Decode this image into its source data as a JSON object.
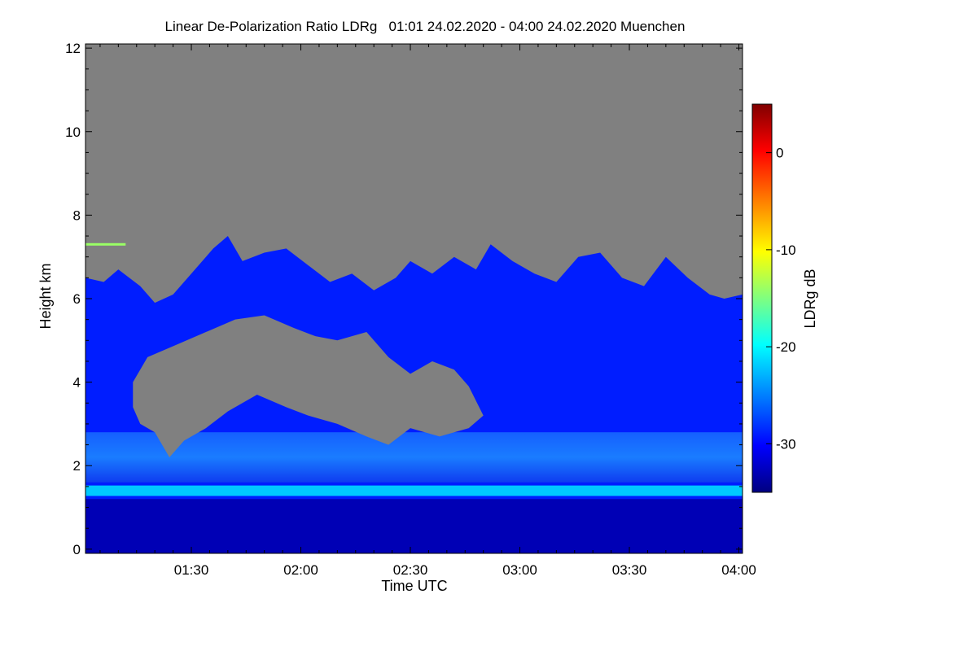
{
  "chart_data": {
    "type": "heatmap",
    "title": "Linear De-Polarization Ratio LDRg   01:01 24.02.2020 - 04:00 24.02.2020 Muenchen",
    "xlabel": "Time UTC",
    "ylabel": "Height km",
    "x_range_minutes": [
      61,
      241
    ],
    "x_ticks": [
      {
        "minute": 90,
        "label": "01:30"
      },
      {
        "minute": 120,
        "label": "02:00"
      },
      {
        "minute": 150,
        "label": "02:30"
      },
      {
        "minute": 180,
        "label": "03:00"
      },
      {
        "minute": 210,
        "label": "03:30"
      },
      {
        "minute": 240,
        "label": "04:00"
      }
    ],
    "ylim": [
      -0.1,
      12.1
    ],
    "y_ticks": [
      {
        "value": 0,
        "label": "0"
      },
      {
        "value": 2,
        "label": "2"
      },
      {
        "value": 4,
        "label": "4"
      },
      {
        "value": 6,
        "label": "6"
      },
      {
        "value": 8,
        "label": "8"
      },
      {
        "value": 10,
        "label": "10"
      },
      {
        "value": 12,
        "label": "12"
      }
    ],
    "colorbar": {
      "label": "LDRg dB",
      "range": [
        -35,
        5
      ],
      "ticks": [
        {
          "value": 0,
          "label": "0"
        },
        {
          "value": -10,
          "label": "-10"
        },
        {
          "value": -20,
          "label": "-20"
        },
        {
          "value": -30,
          "label": "-30"
        }
      ]
    },
    "no_data_color": "#808080",
    "colormap": [
      "#000080",
      "#0000ff",
      "#00ffff",
      "#ffff00",
      "#ff0000",
      "#800000"
    ],
    "cloud_top_km": [
      [
        61,
        6.5
      ],
      [
        66,
        6.4
      ],
      [
        70,
        6.7
      ],
      [
        76,
        6.3
      ],
      [
        80,
        5.9
      ],
      [
        85,
        6.1
      ],
      [
        90,
        6.6
      ],
      [
        96,
        7.2
      ],
      [
        100,
        7.5
      ],
      [
        104,
        6.9
      ],
      [
        110,
        7.1
      ],
      [
        116,
        7.2
      ],
      [
        122,
        6.8
      ],
      [
        128,
        6.4
      ],
      [
        134,
        6.6
      ],
      [
        140,
        6.2
      ],
      [
        146,
        6.5
      ],
      [
        150,
        6.9
      ],
      [
        156,
        6.6
      ],
      [
        162,
        7.0
      ],
      [
        168,
        6.7
      ],
      [
        172,
        7.3
      ],
      [
        178,
        6.9
      ],
      [
        184,
        6.6
      ],
      [
        190,
        6.4
      ],
      [
        196,
        7.0
      ],
      [
        202,
        7.1
      ],
      [
        208,
        6.5
      ],
      [
        214,
        6.3
      ],
      [
        220,
        7.0
      ],
      [
        226,
        6.5
      ],
      [
        232,
        6.1
      ],
      [
        236,
        6.0
      ],
      [
        241,
        6.1
      ]
    ],
    "gap_region_km": [
      [
        74,
        4.0
      ],
      [
        78,
        4.6
      ],
      [
        86,
        4.9
      ],
      [
        94,
        5.2
      ],
      [
        102,
        5.5
      ],
      [
        110,
        5.6
      ],
      [
        118,
        5.3
      ],
      [
        124,
        5.1
      ],
      [
        130,
        5.0
      ],
      [
        138,
        5.2
      ],
      [
        144,
        4.6
      ],
      [
        150,
        4.2
      ],
      [
        156,
        4.5
      ],
      [
        162,
        4.3
      ],
      [
        166,
        3.9
      ],
      [
        170,
        3.2
      ],
      [
        166,
        2.9
      ],
      [
        158,
        2.7
      ],
      [
        150,
        2.9
      ],
      [
        144,
        2.5
      ],
      [
        138,
        2.7
      ],
      [
        130,
        3.0
      ],
      [
        122,
        3.2
      ],
      [
        116,
        3.4
      ],
      [
        108,
        3.7
      ],
      [
        100,
        3.3
      ],
      [
        94,
        2.9
      ],
      [
        88,
        2.6
      ],
      [
        84,
        2.2
      ],
      [
        80,
        2.8
      ],
      [
        76,
        3.0
      ],
      [
        74,
        3.4
      ]
    ],
    "bright_layer": {
      "height_km": 1.4,
      "thickness_km": 0.25,
      "value_db": -22
    },
    "layer_values_db": [
      {
        "from_km": -0.1,
        "to_km": 1.2,
        "value_db": -33
      },
      {
        "from_km": 1.2,
        "to_km": 1.6,
        "value_db": -22
      },
      {
        "from_km": 1.6,
        "to_km": 2.8,
        "value_db": -26
      },
      {
        "from_km": 2.8,
        "to_km": 7.5,
        "value_db": -29
      }
    ],
    "thin_layer": {
      "height_km": 7.3,
      "value_db": -14
    }
  }
}
